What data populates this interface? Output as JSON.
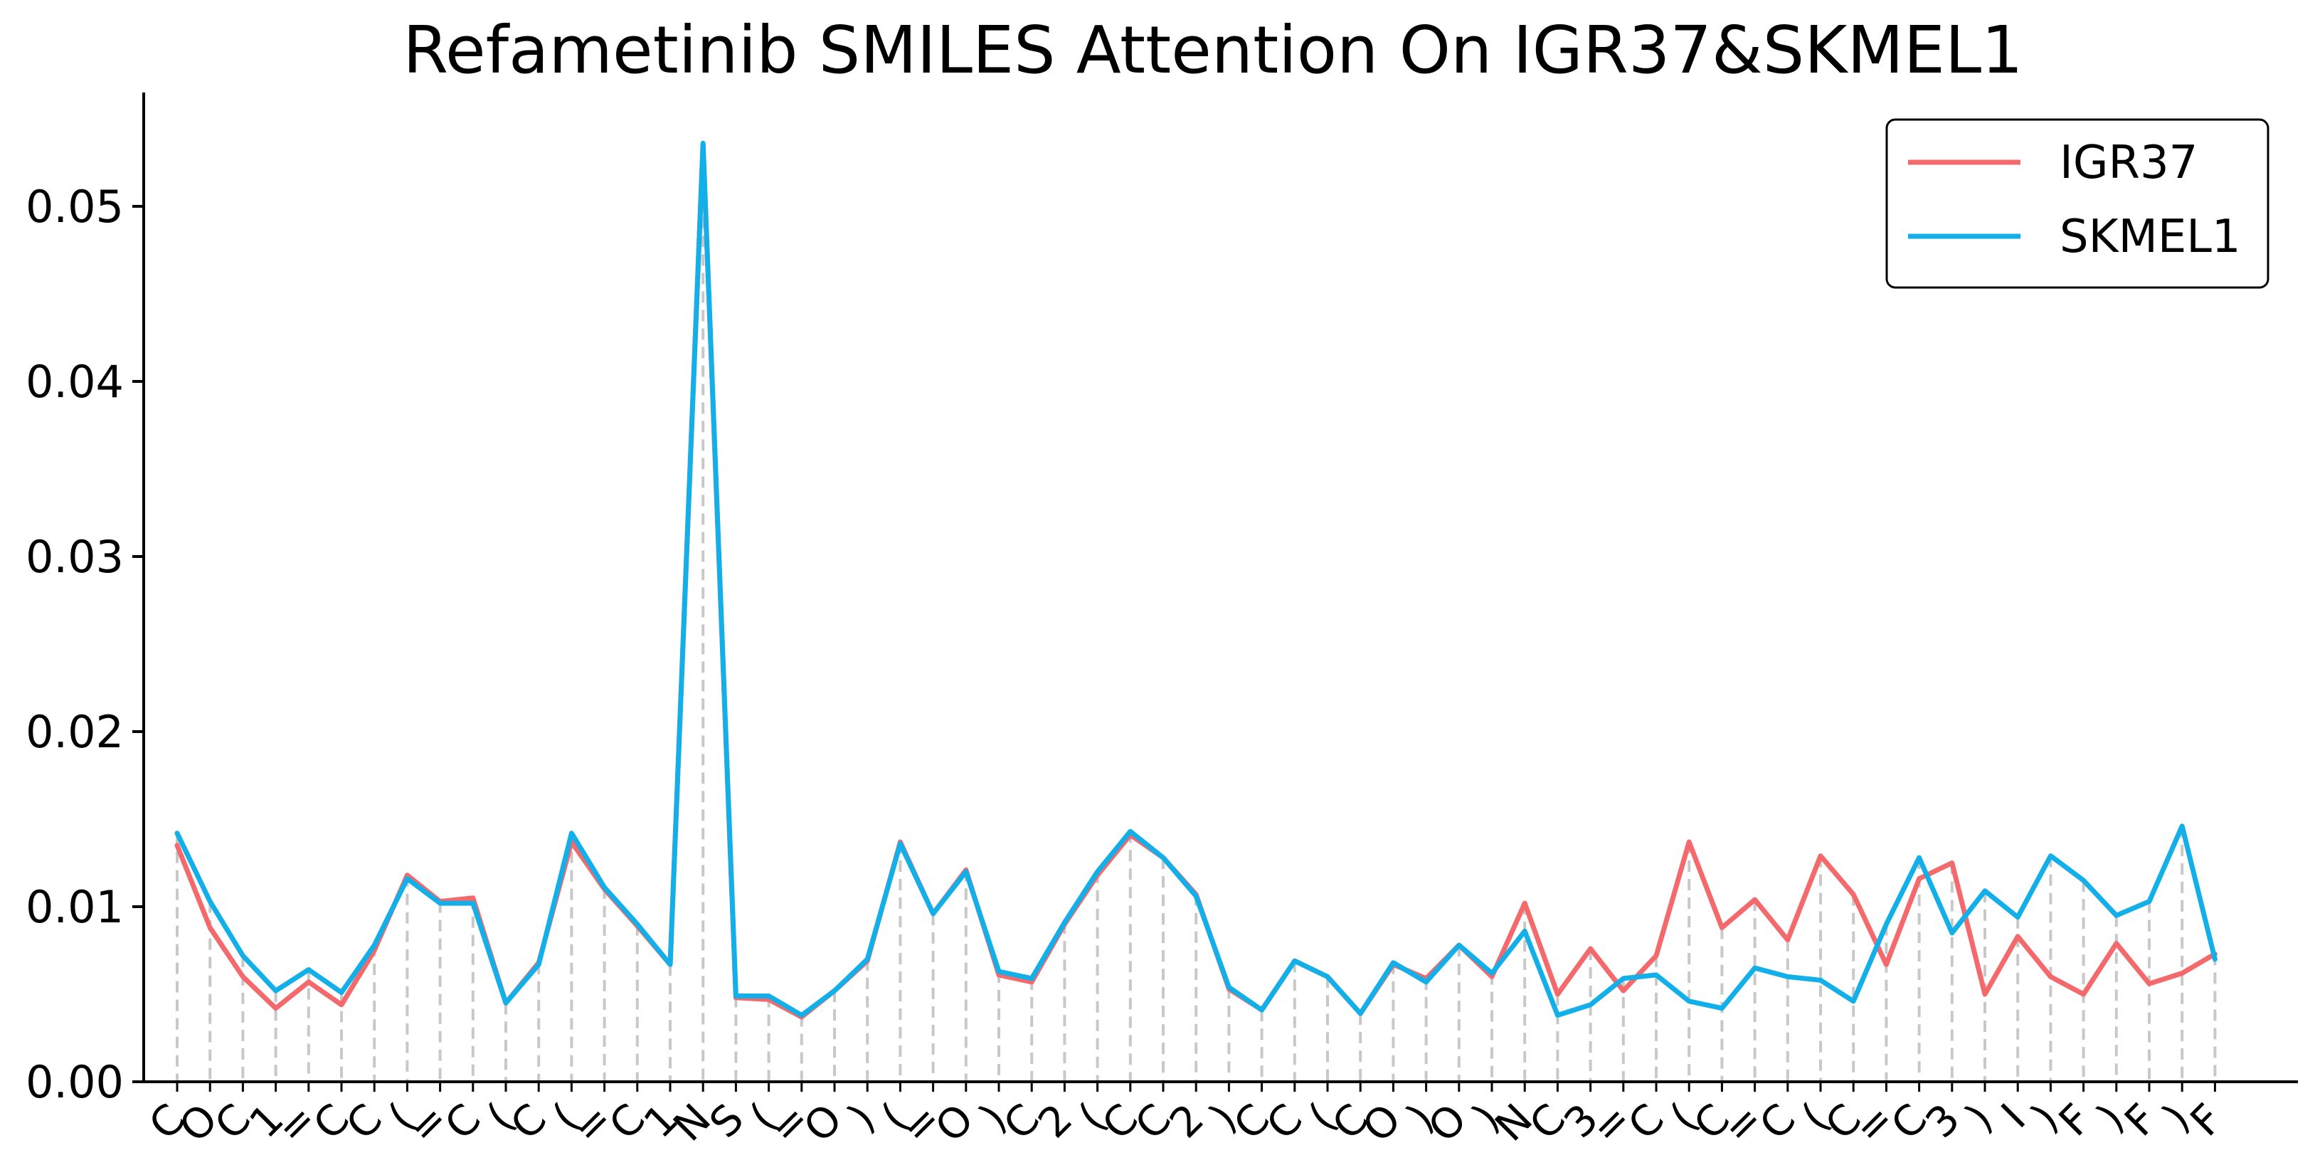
{
  "chart_data": {
    "type": "line",
    "title": "Refametinib SMILES Attention On IGR37&SKMEL1",
    "xlabel": "",
    "ylabel": "",
    "ylim": [
      0,
      0.0565
    ],
    "yticks": [
      "0.00",
      "0.01",
      "0.02",
      "0.03",
      "0.04",
      "0.05"
    ],
    "ytick_values": [
      0,
      0.01,
      0.02,
      0.03,
      0.04,
      0.05
    ],
    "grid": false,
    "legend_position": "top-right",
    "categories": [
      "C",
      "O",
      "C",
      "1",
      "=",
      "C",
      "C",
      "(",
      "=",
      "C",
      "(",
      "C",
      "(",
      "=",
      "C",
      "1",
      "N",
      "S",
      "(",
      "=",
      "O",
      ")",
      "(",
      "=",
      "O",
      ")",
      "C",
      "2",
      "(",
      "C",
      "C",
      "2",
      ")",
      "C",
      "C",
      "(",
      "C",
      "O",
      ")",
      "O",
      ")",
      "N",
      "C",
      "3",
      "=",
      "C",
      "(",
      "C",
      "=",
      "C",
      "(",
      "C",
      "=",
      "C",
      "3",
      ")",
      "I",
      ")",
      "F",
      ")",
      "F",
      ")",
      "F"
    ],
    "series": [
      {
        "name": "IGR37",
        "color": "#F46A6C",
        "values": [
          0.0135,
          0.0088,
          0.006,
          0.0042,
          0.0057,
          0.0044,
          0.0075,
          0.0118,
          0.0103,
          0.0105,
          0.0045,
          0.0068,
          0.0137,
          0.011,
          0.0089,
          0.0067,
          0.0535,
          0.0048,
          0.0047,
          0.0037,
          0.0052,
          0.0069,
          0.0137,
          0.0096,
          0.0121,
          0.0061,
          0.0057,
          0.009,
          0.0118,
          0.0141,
          0.0128,
          0.0107,
          0.0053,
          0.0041,
          0.0069,
          0.006,
          0.0039,
          0.0067,
          0.0059,
          0.0078,
          0.006,
          0.0102,
          0.005,
          0.0076,
          0.0052,
          0.0072,
          0.0137,
          0.0088,
          0.0104,
          0.0081,
          0.0129,
          0.0107,
          0.0067,
          0.0116,
          0.0125,
          0.005,
          0.0083,
          0.006,
          0.005,
          0.0079,
          0.0056,
          0.0062,
          0.0073
        ]
      },
      {
        "name": "SKMEL1",
        "color": "#13AFE9",
        "values": [
          0.0142,
          0.0103,
          0.0072,
          0.0052,
          0.0064,
          0.0051,
          0.0078,
          0.0116,
          0.0102,
          0.0102,
          0.0045,
          0.0067,
          0.0142,
          0.0111,
          0.009,
          0.0067,
          0.0536,
          0.0049,
          0.0049,
          0.0038,
          0.0052,
          0.007,
          0.0136,
          0.0096,
          0.012,
          0.0063,
          0.0059,
          0.0091,
          0.012,
          0.0143,
          0.0128,
          0.0106,
          0.0054,
          0.0041,
          0.0069,
          0.006,
          0.0039,
          0.0068,
          0.0057,
          0.0078,
          0.0062,
          0.0086,
          0.0038,
          0.0044,
          0.0059,
          0.0061,
          0.0046,
          0.0042,
          0.0065,
          0.006,
          0.0058,
          0.0046,
          0.009,
          0.0128,
          0.0085,
          0.0109,
          0.0094,
          0.0129,
          0.0115,
          0.0095,
          0.0103,
          0.0146,
          0.007
        ]
      }
    ]
  }
}
